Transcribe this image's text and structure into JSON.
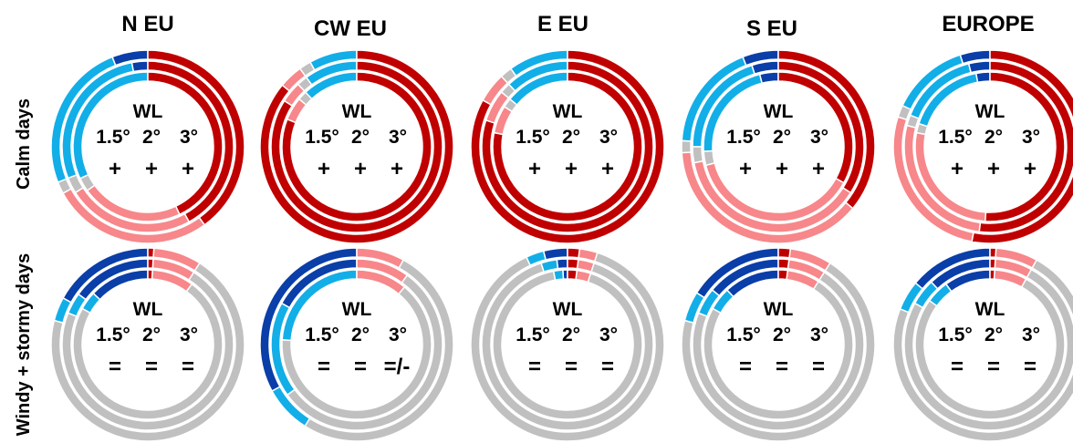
{
  "colors": {
    "strong_decrease": "#0a3ea8",
    "weak_decrease": "#12aee8",
    "no_change": "#c0c0c0",
    "weak_increase": "#f7878a",
    "strong_increase": "#c00000"
  },
  "chart_data": {
    "type": "pie",
    "subtype": "concentric-donut",
    "rings": [
      "1.5°",
      "2°",
      "3°"
    ],
    "ring_order": "inner-to-outer",
    "categories": [
      "strong_decrease",
      "weak_decrease",
      "no_change",
      "weak_increase",
      "strong_increase"
    ],
    "columns": [
      "N EU",
      "CW EU",
      "E EU",
      "S EU",
      "EUROPE"
    ],
    "rows": [
      "Calm days",
      "Windy + stormy days"
    ],
    "center_label": "WL",
    "panels": [
      {
        "row": 0,
        "col": 0,
        "signs": [
          "+",
          "+",
          "+"
        ],
        "rings": [
          {
            "level": "1.5°",
            "values": [
              0,
              32,
              3,
              22,
              43
            ]
          },
          {
            "level": "2°",
            "values": [
              3,
              28,
              3,
              24,
              42
            ]
          },
          {
            "level": "3°",
            "values": [
              6,
              25,
              2,
              27,
              40
            ]
          }
        ]
      },
      {
        "row": 0,
        "col": 1,
        "signs": [
          "+",
          "+",
          "+"
        ],
        "rings": [
          {
            "level": "1.5°",
            "values": [
              0,
              12,
              2,
              5,
              81
            ]
          },
          {
            "level": "2°",
            "values": [
              0,
              10,
              2,
              4,
              84
            ]
          },
          {
            "level": "3°",
            "values": [
              0,
              8,
              2,
              4,
              86
            ]
          }
        ]
      },
      {
        "row": 0,
        "col": 2,
        "signs": [
          "+",
          "+",
          "+"
        ],
        "rings": [
          {
            "level": "1.5°",
            "values": [
              0,
              14,
              2,
              6,
              78
            ]
          },
          {
            "level": "2°",
            "values": [
              0,
              12,
              2,
              6,
              80
            ]
          },
          {
            "level": "3°",
            "values": [
              0,
              10,
              2,
              5,
              83
            ]
          }
        ]
      },
      {
        "row": 0,
        "col": 3,
        "signs": [
          "+",
          "+",
          "+"
        ],
        "rings": [
          {
            "level": "1.5°",
            "values": [
              4,
              22,
              3,
              38,
              33
            ]
          },
          {
            "level": "2°",
            "values": [
              5,
              20,
              3,
              38,
              34
            ]
          },
          {
            "level": "3°",
            "values": [
              6,
              18,
              2,
              38,
              36
            ]
          }
        ]
      },
      {
        "row": 0,
        "col": 4,
        "signs": [
          "+",
          "+",
          "+"
        ],
        "rings": [
          {
            "level": "1.5°",
            "values": [
              3,
              17,
              2,
              27,
              51
            ]
          },
          {
            "level": "2°",
            "values": [
              4,
              15,
              2,
              27,
              52
            ]
          },
          {
            "level": "3°",
            "values": [
              5,
              13,
              2,
              27,
              53
            ]
          }
        ]
      },
      {
        "row": 1,
        "col": 0,
        "signs": [
          "=",
          "=",
          "="
        ],
        "rings": [
          {
            "level": "1.5°",
            "values": [
              13,
              4,
              73,
              9,
              1
            ]
          },
          {
            "level": "2°",
            "values": [
              15,
              4,
              72,
              8,
              1
            ]
          },
          {
            "level": "3°",
            "values": [
              17,
              4,
              70,
              8,
              1
            ]
          }
        ]
      },
      {
        "row": 1,
        "col": 1,
        "signs": [
          "=",
          "=",
          "=/-"
        ],
        "rings": [
          {
            "level": "1.5°",
            "values": [
              0,
              24,
              65,
              11,
              0
            ]
          },
          {
            "level": "2°",
            "values": [
              17,
              18,
              55,
              10,
              0
            ]
          },
          {
            "level": "3°",
            "values": [
              33,
              8,
              51,
              8,
              0
            ]
          }
        ]
      },
      {
        "row": 1,
        "col": 2,
        "signs": [
          "=",
          "=",
          "="
        ],
        "rings": [
          {
            "level": "1.5°",
            "values": [
              1,
              2,
              92,
              3,
              2
            ]
          },
          {
            "level": "2°",
            "values": [
              2,
              3,
              90,
              3,
              2
            ]
          },
          {
            "level": "3°",
            "values": [
              4,
              3,
              88,
              3,
              2
            ]
          }
        ]
      },
      {
        "row": 1,
        "col": 3,
        "signs": [
          "=",
          "=",
          "="
        ],
        "rings": [
          {
            "level": "1.5°",
            "values": [
              12,
              5,
              74,
              7,
              2
            ]
          },
          {
            "level": "2°",
            "values": [
              14,
              5,
              72,
              7,
              2
            ]
          },
          {
            "level": "3°",
            "values": [
              16,
              5,
              70,
              7,
              2
            ]
          }
        ]
      },
      {
        "row": 1,
        "col": 4,
        "signs": [
          "=",
          "=",
          "="
        ],
        "rings": [
          {
            "level": "1.5°",
            "values": [
              10,
              5,
              77,
              7,
              1
            ]
          },
          {
            "level": "2°",
            "values": [
              12,
              5,
              75,
              7,
              1
            ]
          },
          {
            "level": "3°",
            "values": [
              14,
              5,
              73,
              7,
              1
            ]
          }
        ]
      }
    ]
  }
}
